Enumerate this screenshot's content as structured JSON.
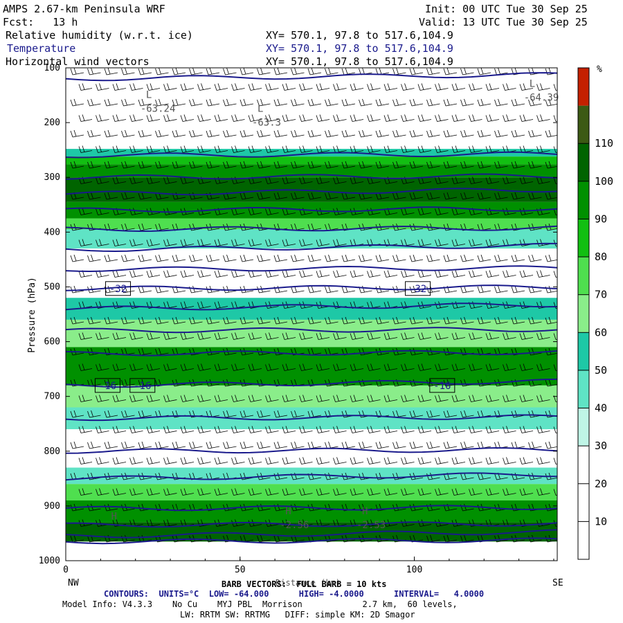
{
  "header": {
    "model_title": "AMPS 2.67-km Peninsula WRF",
    "init": "Init: 00 UTC Tue 30 Sep 25",
    "fcst": "Fcst:   13 h",
    "valid": "Valid: 13 UTC Tue 30 Sep 25",
    "fields": [
      {
        "name": "Relative humidity (w.r.t. ice)",
        "xy": "XY= 570.1, 97.8 to 517.6,104.9"
      },
      {
        "name": "Temperature",
        "xy": "XY= 570.1, 97.8 to 517.6,104.9"
      },
      {
        "name": "Horizontal wind vectors",
        "xy": "XY= 570.1, 97.8 to 517.6,104.9"
      }
    ]
  },
  "chart_data": {
    "type": "heatmap",
    "ylabel": "Pressure (hPa)",
    "xlabel": "Distance (km)",
    "x_left_label": "NW",
    "x_right_label": "SE",
    "xlim": [
      0,
      141
    ],
    "ylim": [
      1000,
      100
    ],
    "x_ticks": [
      0,
      50,
      100
    ],
    "y_ticks": [
      100,
      200,
      300,
      400,
      500,
      600,
      700,
      800,
      900,
      1000
    ],
    "colorbar": {
      "unit": "%",
      "tick_labels": [
        "10",
        "20",
        "30",
        "40",
        "50",
        "60",
        "70",
        "80",
        "90",
        "100",
        "110"
      ],
      "colors": [
        "#ffffff",
        "#ffffff",
        "#ffffff",
        "#bff5e6",
        "#5fe3c5",
        "#1ec8a6",
        "#8aed8a",
        "#4fdf4f",
        "#12bf12",
        "#009000",
        "#006400",
        "#3c5a14",
        "#c42000"
      ]
    },
    "rh_bands": [
      {
        "p_top": 100,
        "p_bot": 248,
        "rh": 15
      },
      {
        "p_top": 248,
        "p_bot": 262,
        "rh": 55
      },
      {
        "p_top": 262,
        "p_bot": 276,
        "rh": 85
      },
      {
        "p_top": 276,
        "p_bot": 300,
        "rh": 95
      },
      {
        "p_top": 300,
        "p_bot": 345,
        "rh": 105
      },
      {
        "p_top": 345,
        "p_bot": 375,
        "rh": 95
      },
      {
        "p_top": 375,
        "p_bot": 395,
        "rh": 75
      },
      {
        "p_top": 395,
        "p_bot": 430,
        "rh": 45
      },
      {
        "p_top": 430,
        "p_bot": 460,
        "rh": 25
      },
      {
        "p_top": 460,
        "p_bot": 520,
        "rh": 15
      },
      {
        "p_top": 520,
        "p_bot": 560,
        "rh": 50
      },
      {
        "p_top": 560,
        "p_bot": 610,
        "rh": 65
      },
      {
        "p_top": 610,
        "p_bot": 680,
        "rh": 90
      },
      {
        "p_top": 680,
        "p_bot": 720,
        "rh": 65
      },
      {
        "p_top": 720,
        "p_bot": 760,
        "rh": 40
      },
      {
        "p_top": 760,
        "p_bot": 830,
        "rh": 15
      },
      {
        "p_top": 830,
        "p_bot": 860,
        "rh": 45
      },
      {
        "p_top": 860,
        "p_bot": 890,
        "rh": 75
      },
      {
        "p_top": 890,
        "p_bot": 930,
        "rh": 90
      },
      {
        "p_top": 930,
        "p_bot": 965,
        "rh": 105
      }
    ],
    "temperature_contours_hpa": [
      120,
      260,
      300,
      330,
      360,
      395,
      432,
      468,
      503,
      540,
      580,
      622,
      680,
      740,
      800,
      850,
      905,
      935,
      955,
      965
    ],
    "contour_labels": [
      {
        "text": "-32",
        "x": 15,
        "p": 503
      },
      {
        "text": "-32",
        "x": 101,
        "p": 503
      },
      {
        "text": "-16",
        "x": 12,
        "p": 680
      },
      {
        "text": "-16",
        "x": 22,
        "p": 680
      },
      {
        "text": "-16",
        "x": 108,
        "p": 680
      }
    ],
    "extrema": [
      {
        "mark": "L",
        "value": "-63.24",
        "x": 23,
        "p": 155
      },
      {
        "mark": "L",
        "value": "-63.3",
        "x": 55,
        "p": 180
      },
      {
        "mark": "L",
        "value": "-64.39",
        "x": 133,
        "p": 135
      },
      {
        "mark": "H",
        "value": "",
        "x": 13,
        "p": 925
      },
      {
        "mark": "H",
        "value": "-2.56",
        "x": 63,
        "p": 915
      },
      {
        "mark": "H",
        "value": "-2.53",
        "x": 85,
        "p": 915
      }
    ]
  },
  "footer": {
    "barb_line": "BARB VECTORS:  FULL BARB = 10 kts",
    "contours_line": "CONTOURS:  UNITS=°C  LOW= -64.000      HIGH= -4.0000      INTERVAL=   4.0000",
    "model_info_1": "Model Info: V4.3.3    No Cu    MYJ PBL  Morrison            2.7 km,  60 levels,",
    "model_info_2": "LW: RRTM SW: RRTMG   DIFF: simple KM: 2D Smagor"
  }
}
